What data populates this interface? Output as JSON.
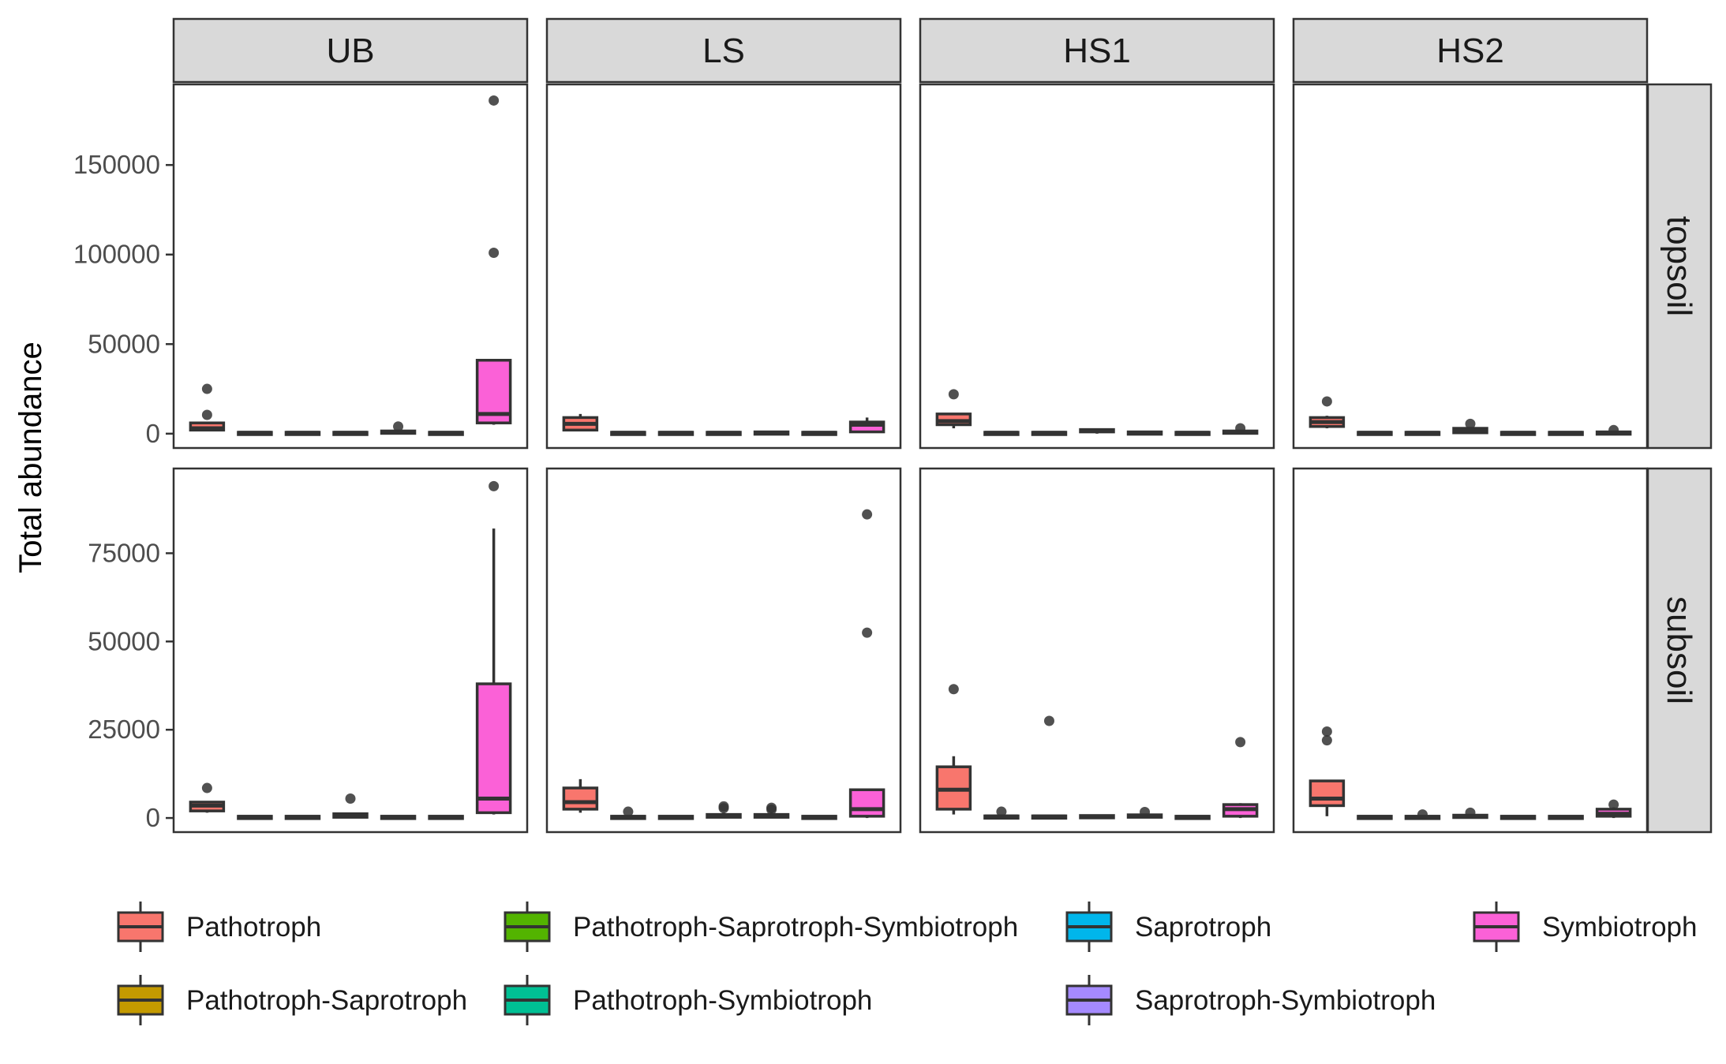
{
  "chart_data": {
    "type": "boxplot",
    "ylabel": "Total abundance",
    "xlabel": "",
    "columns": [
      "UB",
      "LS",
      "HS1",
      "HS2"
    ],
    "rows": [
      "topsoil",
      "subsoil"
    ],
    "row_axes": {
      "topsoil": {
        "ylim": [
          -8000,
          195000
        ],
        "ticks": [
          0,
          50000,
          100000,
          150000
        ],
        "tick_labels": [
          "0",
          "50000",
          "100000",
          "150000"
        ]
      },
      "subsoil": {
        "ylim": [
          -4000,
          99000
        ],
        "ticks": [
          0,
          25000,
          50000,
          75000
        ],
        "tick_labels": [
          "0",
          "25000",
          "50000",
          "75000"
        ]
      }
    },
    "legend": {
      "position": "bottom",
      "items": [
        {
          "name": "Pathotroph",
          "color": "#F8766D"
        },
        {
          "name": "Pathotroph-Saprotroph",
          "color": "#C49A00"
        },
        {
          "name": "Pathotroph-Saprotroph-Symbiotroph",
          "color": "#53B400"
        },
        {
          "name": "Pathotroph-Symbiotroph",
          "color": "#00C094"
        },
        {
          "name": "Saprotroph",
          "color": "#00B6EB"
        },
        {
          "name": "Saprotroph-Symbiotroph",
          "color": "#A58AFF"
        },
        {
          "name": "Symbiotroph",
          "color": "#FB61D7"
        }
      ]
    },
    "panels": [
      {
        "column": "UB",
        "row": "topsoil",
        "boxes": [
          {
            "group": "Pathotroph",
            "wlo": 1500,
            "q1": 2000,
            "med": 3000,
            "q3": 6000,
            "whi": 6000,
            "out": [
              10500,
              25000
            ]
          },
          {
            "group": "Pathotroph-Saprotroph",
            "wlo": 0,
            "q1": 200,
            "med": 500,
            "q3": 800,
            "whi": 1000,
            "out": []
          },
          {
            "group": "Pathotroph-Saprotroph-Symbiotroph",
            "wlo": 0,
            "q1": 200,
            "med": 500,
            "q3": 800,
            "whi": 1000,
            "out": []
          },
          {
            "group": "Pathotroph-Symbiotroph",
            "wlo": 0,
            "q1": 200,
            "med": 500,
            "q3": 800,
            "whi": 1000,
            "out": []
          },
          {
            "group": "Saprotroph",
            "wlo": 0,
            "q1": 300,
            "med": 800,
            "q3": 1500,
            "whi": 2000,
            "out": [
              4000
            ]
          },
          {
            "group": "Saprotroph-Symbiotroph",
            "wlo": 0,
            "q1": 200,
            "med": 500,
            "q3": 800,
            "whi": 1000,
            "out": []
          },
          {
            "group": "Symbiotroph",
            "wlo": 5000,
            "q1": 6000,
            "med": 11000,
            "q3": 41000,
            "whi": 41000,
            "out": [
              101000,
              186000
            ]
          }
        ]
      },
      {
        "column": "LS",
        "row": "topsoil",
        "boxes": [
          {
            "group": "Pathotroph",
            "wlo": 1500,
            "q1": 2000,
            "med": 5500,
            "q3": 9000,
            "whi": 11000,
            "out": []
          },
          {
            "group": "Pathotroph-Saprotroph",
            "wlo": 0,
            "q1": 200,
            "med": 500,
            "q3": 800,
            "whi": 1000,
            "out": []
          },
          {
            "group": "Pathotroph-Saprotroph-Symbiotroph",
            "wlo": 0,
            "q1": 200,
            "med": 500,
            "q3": 800,
            "whi": 1000,
            "out": []
          },
          {
            "group": "Pathotroph-Symbiotroph",
            "wlo": 0,
            "q1": 200,
            "med": 500,
            "q3": 800,
            "whi": 1000,
            "out": []
          },
          {
            "group": "Saprotroph",
            "wlo": 0,
            "q1": 300,
            "med": 600,
            "q3": 1000,
            "whi": 1500,
            "out": []
          },
          {
            "group": "Saprotroph-Symbiotroph",
            "wlo": 0,
            "q1": 200,
            "med": 500,
            "q3": 800,
            "whi": 1000,
            "out": []
          },
          {
            "group": "Symbiotroph",
            "wlo": 500,
            "q1": 1000,
            "med": 5000,
            "q3": 6500,
            "whi": 9000,
            "out": []
          }
        ]
      },
      {
        "column": "HS1",
        "row": "topsoil",
        "boxes": [
          {
            "group": "Pathotroph",
            "wlo": 3000,
            "q1": 5000,
            "med": 7000,
            "q3": 11000,
            "whi": 11000,
            "out": [
              22000
            ]
          },
          {
            "group": "Pathotroph-Saprotroph",
            "wlo": 0,
            "q1": 200,
            "med": 500,
            "q3": 800,
            "whi": 1000,
            "out": []
          },
          {
            "group": "Pathotroph-Saprotroph-Symbiotroph",
            "wlo": 0,
            "q1": 200,
            "med": 500,
            "q3": 800,
            "whi": 1000,
            "out": []
          },
          {
            "group": "Pathotroph-Symbiotroph",
            "wlo": 0,
            "q1": 1000,
            "med": 1800,
            "q3": 2300,
            "whi": 2500,
            "out": []
          },
          {
            "group": "Saprotroph",
            "wlo": 0,
            "q1": 300,
            "med": 600,
            "q3": 1000,
            "whi": 1500,
            "out": []
          },
          {
            "group": "Saprotroph-Symbiotroph",
            "wlo": 0,
            "q1": 200,
            "med": 500,
            "q3": 800,
            "whi": 1000,
            "out": []
          },
          {
            "group": "Symbiotroph",
            "wlo": 0,
            "q1": 400,
            "med": 800,
            "q3": 1500,
            "whi": 2000,
            "out": [
              3000
            ]
          }
        ]
      },
      {
        "column": "HS2",
        "row": "topsoil",
        "boxes": [
          {
            "group": "Pathotroph",
            "wlo": 3000,
            "q1": 4000,
            "med": 6500,
            "q3": 9000,
            "whi": 10000,
            "out": [
              18000
            ]
          },
          {
            "group": "Pathotroph-Saprotroph",
            "wlo": 0,
            "q1": 200,
            "med": 500,
            "q3": 800,
            "whi": 1000,
            "out": []
          },
          {
            "group": "Pathotroph-Saprotroph-Symbiotroph",
            "wlo": 0,
            "q1": 200,
            "med": 500,
            "q3": 800,
            "whi": 1000,
            "out": []
          },
          {
            "group": "Pathotroph-Symbiotroph",
            "wlo": 0,
            "q1": 500,
            "med": 1500,
            "q3": 3000,
            "whi": 3500,
            "out": [
              5500
            ]
          },
          {
            "group": "Saprotroph",
            "wlo": 0,
            "q1": 200,
            "med": 500,
            "q3": 800,
            "whi": 1000,
            "out": []
          },
          {
            "group": "Saprotroph-Symbiotroph",
            "wlo": 0,
            "q1": 200,
            "med": 500,
            "q3": 800,
            "whi": 1000,
            "out": []
          },
          {
            "group": "Symbiotroph",
            "wlo": 0,
            "q1": 300,
            "med": 600,
            "q3": 1000,
            "whi": 1500,
            "out": [
              2000
            ]
          }
        ]
      },
      {
        "column": "UB",
        "row": "subsoil",
        "boxes": [
          {
            "group": "Pathotroph",
            "wlo": 1500,
            "q1": 2000,
            "med": 3500,
            "q3": 4500,
            "whi": 4500,
            "out": [
              8500
            ]
          },
          {
            "group": "Pathotroph-Saprotroph",
            "wlo": 0,
            "q1": 100,
            "med": 300,
            "q3": 500,
            "whi": 700,
            "out": []
          },
          {
            "group": "Pathotroph-Saprotroph-Symbiotroph",
            "wlo": 0,
            "q1": 100,
            "med": 300,
            "q3": 500,
            "whi": 700,
            "out": []
          },
          {
            "group": "Pathotroph-Symbiotroph",
            "wlo": 0,
            "q1": 200,
            "med": 600,
            "q3": 1200,
            "whi": 1500,
            "out": [
              5500
            ]
          },
          {
            "group": "Saprotroph",
            "wlo": 0,
            "q1": 100,
            "med": 300,
            "q3": 500,
            "whi": 700,
            "out": []
          },
          {
            "group": "Saprotroph-Symbiotroph",
            "wlo": 0,
            "q1": 100,
            "med": 300,
            "q3": 500,
            "whi": 700,
            "out": []
          },
          {
            "group": "Symbiotroph",
            "wlo": 1000,
            "q1": 1500,
            "med": 5500,
            "q3": 38000,
            "whi": 82000,
            "out": [
              94000
            ]
          }
        ]
      },
      {
        "column": "LS",
        "row": "subsoil",
        "boxes": [
          {
            "group": "Pathotroph",
            "wlo": 1500,
            "q1": 2500,
            "med": 4500,
            "q3": 8500,
            "whi": 11000,
            "out": []
          },
          {
            "group": "Pathotroph-Saprotroph",
            "wlo": 0,
            "q1": 100,
            "med": 300,
            "q3": 500,
            "whi": 700,
            "out": [
              1800
            ]
          },
          {
            "group": "Pathotroph-Saprotroph-Symbiotroph",
            "wlo": 0,
            "q1": 100,
            "med": 300,
            "q3": 500,
            "whi": 700,
            "out": []
          },
          {
            "group": "Pathotroph-Symbiotroph",
            "wlo": 0,
            "q1": 200,
            "med": 500,
            "q3": 1000,
            "whi": 1500,
            "out": [
              2800,
              3300
            ]
          },
          {
            "group": "Saprotroph",
            "wlo": 0,
            "q1": 200,
            "med": 500,
            "q3": 1000,
            "whi": 1500,
            "out": [
              2400,
              2900
            ]
          },
          {
            "group": "Saprotroph-Symbiotroph",
            "wlo": 0,
            "q1": 100,
            "med": 300,
            "q3": 500,
            "whi": 700,
            "out": []
          },
          {
            "group": "Symbiotroph",
            "wlo": 0,
            "q1": 500,
            "med": 2500,
            "q3": 8000,
            "whi": 8000,
            "out": [
              52500,
              86000
            ]
          }
        ]
      },
      {
        "column": "HS1",
        "row": "subsoil",
        "boxes": [
          {
            "group": "Pathotroph",
            "wlo": 1000,
            "q1": 2500,
            "med": 8000,
            "q3": 14500,
            "whi": 17500,
            "out": [
              36500
            ]
          },
          {
            "group": "Pathotroph-Saprotroph",
            "wlo": 0,
            "q1": 200,
            "med": 400,
            "q3": 600,
            "whi": 800,
            "out": [
              1800
            ]
          },
          {
            "group": "Pathotroph-Saprotroph-Symbiotroph",
            "wlo": 0,
            "q1": 200,
            "med": 400,
            "q3": 600,
            "whi": 800,
            "out": [
              27500
            ]
          },
          {
            "group": "Pathotroph-Symbiotroph",
            "wlo": 0,
            "q1": 200,
            "med": 400,
            "q3": 700,
            "whi": 900,
            "out": []
          },
          {
            "group": "Saprotroph",
            "wlo": 0,
            "q1": 200,
            "med": 500,
            "q3": 900,
            "whi": 1000,
            "out": [
              1700
            ]
          },
          {
            "group": "Saprotroph-Symbiotroph",
            "wlo": 0,
            "q1": 100,
            "med": 300,
            "q3": 500,
            "whi": 700,
            "out": []
          },
          {
            "group": "Symbiotroph",
            "wlo": 0,
            "q1": 500,
            "med": 2500,
            "q3": 3800,
            "whi": 4200,
            "out": [
              21500
            ]
          }
        ]
      },
      {
        "column": "HS2",
        "row": "subsoil",
        "boxes": [
          {
            "group": "Pathotroph",
            "wlo": 500,
            "q1": 3500,
            "med": 5500,
            "q3": 10500,
            "whi": 10500,
            "out": [
              22000,
              24500
            ]
          },
          {
            "group": "Pathotroph-Saprotroph",
            "wlo": 0,
            "q1": 100,
            "med": 300,
            "q3": 500,
            "whi": 700,
            "out": []
          },
          {
            "group": "Pathotroph-Saprotroph-Symbiotroph",
            "wlo": 0,
            "q1": 100,
            "med": 300,
            "q3": 500,
            "whi": 700,
            "out": [
              1000
            ]
          },
          {
            "group": "Pathotroph-Symbiotroph",
            "wlo": 0,
            "q1": 200,
            "med": 500,
            "q3": 800,
            "whi": 1000,
            "out": [
              1500
            ]
          },
          {
            "group": "Saprotroph",
            "wlo": 0,
            "q1": 100,
            "med": 300,
            "q3": 500,
            "whi": 700,
            "out": []
          },
          {
            "group": "Saprotroph-Symbiotroph",
            "wlo": 0,
            "q1": 100,
            "med": 300,
            "q3": 500,
            "whi": 700,
            "out": []
          },
          {
            "group": "Symbiotroph",
            "wlo": 0,
            "q1": 500,
            "med": 1200,
            "q3": 2500,
            "whi": 3000,
            "out": [
              3800
            ]
          }
        ]
      }
    ]
  }
}
